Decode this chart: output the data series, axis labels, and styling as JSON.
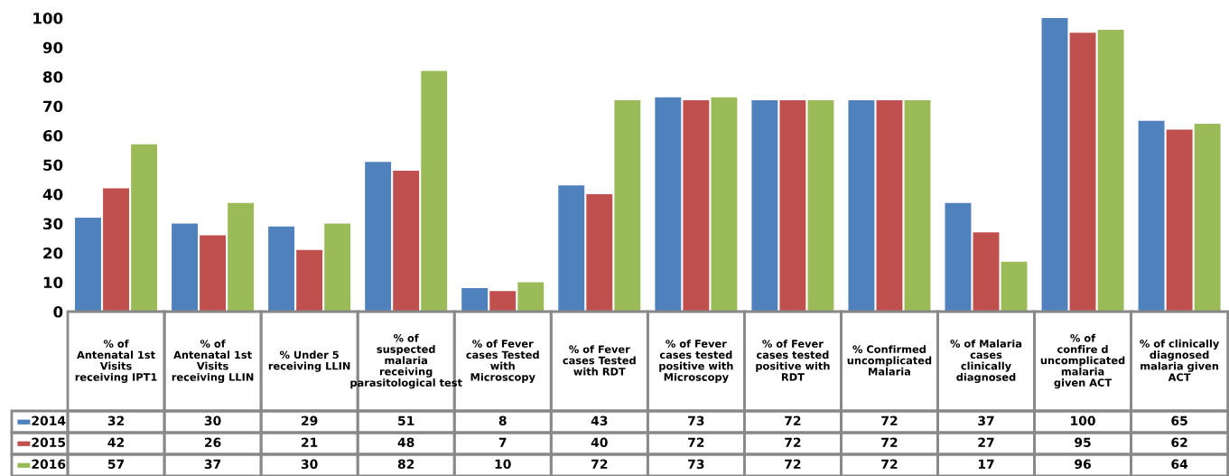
{
  "chart_data": {
    "type": "bar",
    "categories": [
      "% of\nAntenatal 1st\nVisits\nreceiving IPT1",
      "% of\nAntenatal 1st\nVisits\nreceiving LLIN",
      "% Under 5\nreceiving LLIN",
      "% of\nsuspected\nmalaria\nreceiving\nparasitological test",
      "% of Fever\ncases Tested\nwith\nMicroscopy",
      "% of Fever\ncases Tested\nwith RDT",
      "% of Fever\ncases tested\npositive with\nMicroscopy",
      "% of Fever\ncases tested\npositive with\nRDT",
      "% Confirmed\nuncomplicated\nMalaria",
      "% of Malaria\ncases\nclinically\ndiagnosed",
      "% of\nconfire d\nuncomplicated\nmalaria\ngiven ACT",
      "% of clinically\ndiagnosed\nmalaria given\nACT"
    ],
    "series": [
      {
        "name": "2014",
        "color": "#4f81bd",
        "values": [
          32,
          30,
          29,
          51,
          8,
          43,
          73,
          72,
          72,
          37,
          100,
          65
        ]
      },
      {
        "name": "2015",
        "color": "#c0504d",
        "values": [
          42,
          26,
          21,
          48,
          7,
          40,
          72,
          72,
          72,
          27,
          95,
          62
        ]
      },
      {
        "name": "2016",
        "color": "#9bbb59",
        "values": [
          57,
          37,
          30,
          82,
          10,
          72,
          73,
          72,
          72,
          17,
          96,
          64
        ]
      }
    ],
    "ylim": [
      0,
      100
    ],
    "yticks": [
      0,
      10,
      20,
      30,
      40,
      50,
      60,
      70,
      80,
      90,
      100
    ],
    "data_labels": true,
    "legend": "bottom left",
    "grid": false
  }
}
